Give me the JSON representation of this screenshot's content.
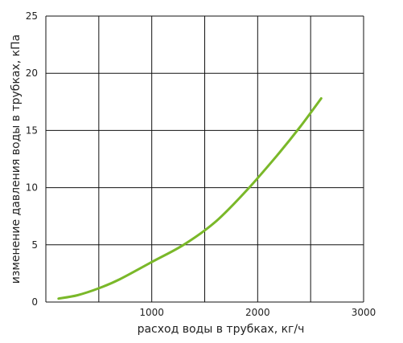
{
  "chart_data": {
    "type": "line",
    "title": "",
    "xlabel": "расход воды в трубках, кг/ч",
    "ylabel": "изменение давления воды в трубках, кПа",
    "xlim": [
      0,
      3000
    ],
    "ylim": [
      0,
      25
    ],
    "x_ticks": [
      1000,
      2000,
      3000
    ],
    "x_tick_labels": [
      "1000",
      "2000",
      "3000"
    ],
    "y_ticks": [
      0,
      5,
      10,
      15,
      20,
      25
    ],
    "y_tick_labels": [
      "0",
      "5",
      "10",
      "15",
      "20",
      "25"
    ],
    "grid": true,
    "legend": "none",
    "series": [
      {
        "color": "#7ab829",
        "x": [
          120,
          300,
          500,
          700,
          1000,
          1300,
          1600,
          1900,
          2200,
          2400,
          2600
        ],
        "y": [
          0.3,
          0.6,
          1.2,
          2.0,
          3.5,
          5.0,
          7.0,
          9.8,
          13.0,
          15.3,
          17.8
        ]
      }
    ]
  }
}
